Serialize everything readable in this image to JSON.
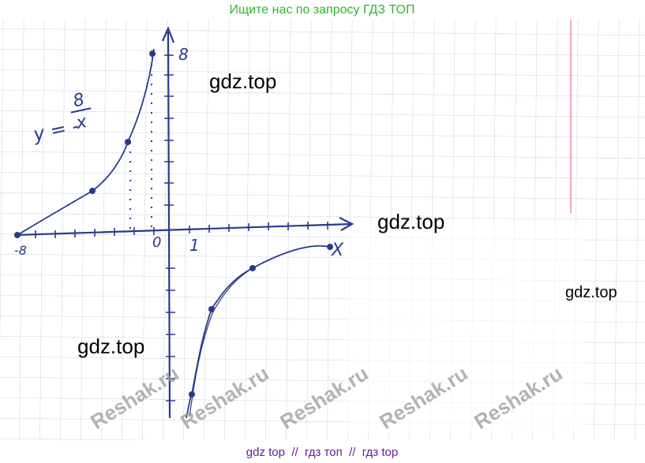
{
  "header": {
    "text": "Ищите нас по запросу ГДЗ ТОП"
  },
  "drawing": {
    "formula": {
      "lhs": "y = -",
      "numerator": "8",
      "denominator": "x"
    },
    "labels": {
      "y_top": "8",
      "x_left": "-8",
      "origin": "0",
      "unit": "1",
      "x_axis": "X"
    }
  },
  "watermarks": {
    "gdz": [
      "gdz.top",
      "gdz.top",
      "gdz.top",
      "gdz.top"
    ],
    "reshak": [
      "Reshak.ru",
      "Reshak.ru",
      "Reshak.ru",
      "Reshak.ru",
      "Reshak.ru"
    ]
  },
  "footer": {
    "text": "gdz top  //  гдз топ  //  гдз top"
  }
}
